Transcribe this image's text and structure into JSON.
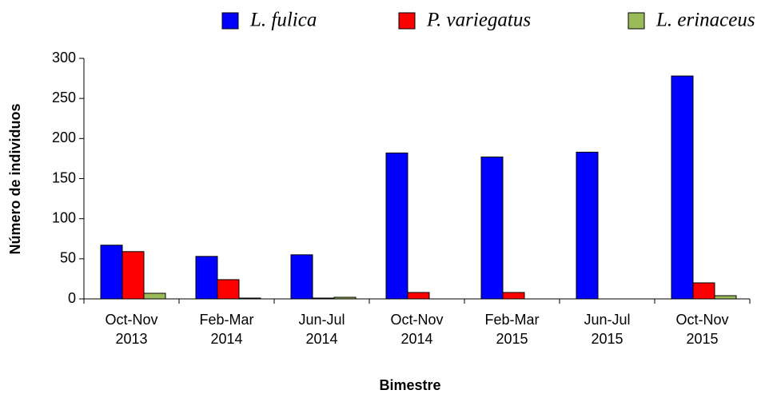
{
  "chart_data": {
    "type": "bar",
    "x_label": "Bimestre",
    "y_label": "Número de individuos",
    "categories": [
      "Oct-Nov 2013",
      "Feb-Mar 2014",
      "Jun-Jul 2014",
      "Oct-Nov 2014",
      "Feb-Mar 2015",
      "Jun-Jul 2015",
      "Oct-Nov 2015"
    ],
    "series": [
      {
        "name": "L. fulica",
        "color": "#0000ff",
        "values": [
          67,
          53,
          55,
          182,
          177,
          183,
          278
        ]
      },
      {
        "name": "P. variegatus",
        "color": "#ff0000",
        "values": [
          59,
          24,
          1,
          8,
          8,
          0,
          20
        ]
      },
      {
        "name": "L. erinaceus",
        "color": "#9bbb59",
        "values": [
          7,
          1,
          2,
          0,
          0,
          0,
          4
        ]
      }
    ],
    "ylim": [
      0,
      300
    ],
    "yticks": [
      0,
      50,
      100,
      150,
      200,
      250,
      300
    ],
    "legend": "top",
    "grid": false
  }
}
